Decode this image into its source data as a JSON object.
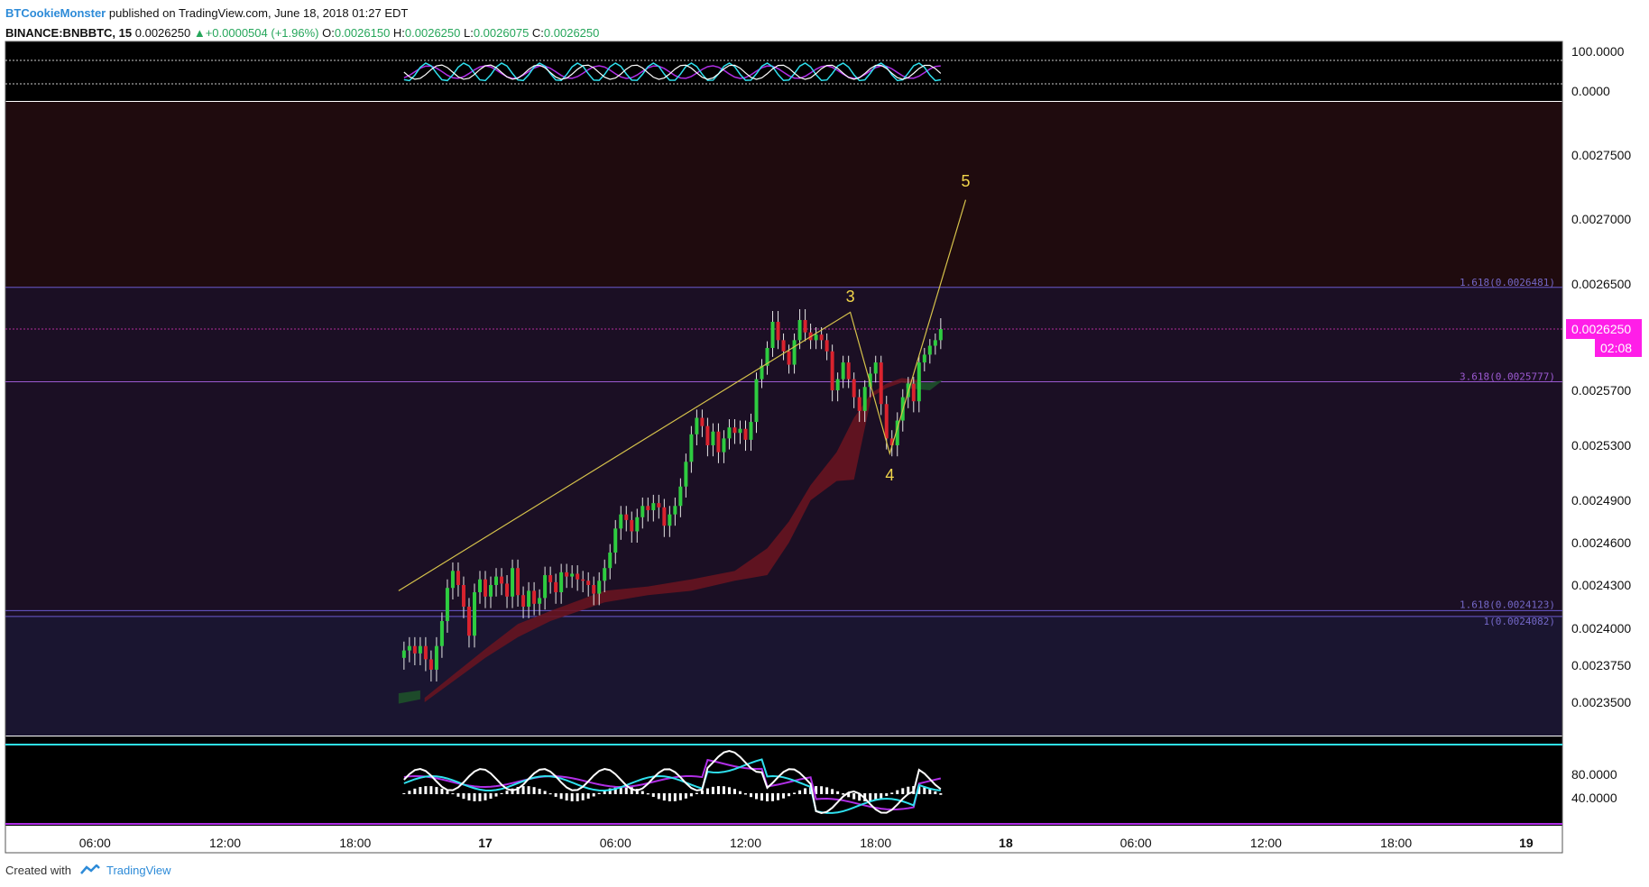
{
  "header": {
    "author": "BTCookieMonster",
    "published": "published on TradingView.com, June 18, 2018 01:27 EDT",
    "symbol": "BINANCE:BNBBTC, 15",
    "last": "0.0026250",
    "change": "+0.0000504 (+1.96%)",
    "ohlc_o_label": "O:",
    "ohlc_o": "0.0026150",
    "ohlc_h_label": "H:",
    "ohlc_h": "0.0026250",
    "ohlc_l_label": "L:",
    "ohlc_l": "0.0026075",
    "ohlc_c_label": "C:",
    "ohlc_c": "0.0026250"
  },
  "footer": {
    "created_with": "Created with",
    "brand": "TradingView"
  },
  "colors": {
    "background": "#000000",
    "panel_bg": "#1b0f24",
    "upper_zone": "#1f0b0e",
    "lower_zone": "#1a1530",
    "up_candle": "#2ecc40",
    "down_candle": "#d9232e",
    "wave_line": "#d6c24b",
    "cloud": "#6b1420",
    "cloud_green": "#1d4a2a",
    "fib_line": "#6a5acd",
    "price_tag": "#ff1ee8",
    "cyan": "#2fe0ee",
    "purple": "#b02ee6"
  },
  "chart_data": [
    {
      "type": "candlestick",
      "title": "",
      "y_axis_ticks": [
        "0.0027500",
        "0.0027000",
        "0.0026500",
        "0.0026250",
        "0.0025700",
        "0.0025300",
        "0.0024900",
        "0.0024600",
        "0.0024300",
        "0.0024000",
        "0.0023750",
        "0.0023500"
      ],
      "ylim": [
        0.00232,
        0.00279
      ],
      "x_axis_ticks": [
        "06:00",
        "12:00",
        "18:00",
        "17",
        "06:00",
        "12:00",
        "18:00",
        "18",
        "06:00",
        "12:00",
        "18:00",
        "19"
      ],
      "x_axis_bold": [
        "17",
        "18",
        "19"
      ],
      "current_price_label": "0.0026250",
      "countdown_label": "02:08",
      "fib_labels": [
        {
          "text": "1.618(0.0026481)",
          "price": 0.0026481
        },
        {
          "text": "3.618(0.0025777)",
          "price": 0.0025777
        },
        {
          "text": "1.618(0.0024123)",
          "price": 0.0024123
        },
        {
          "text": "1(0.0024082)",
          "price": 0.0024082
        }
      ],
      "wave_labels": [
        {
          "text": "3",
          "time": 16.83,
          "price": 0.00264
        },
        {
          "text": "4",
          "time": 18.65,
          "price": 0.0025045
        },
        {
          "text": "5",
          "time": 22.15,
          "price": 0.0027255
        }
      ],
      "wave_path": [
        {
          "time": -4.0,
          "price": 0.002426
        },
        {
          "time": 16.83,
          "price": 0.0026343
        },
        {
          "time": 18.65,
          "price": 0.002524
        },
        {
          "time": 22.15,
          "price": 0.002715
        }
      ],
      "candles": [
        [
          0.00238,
          0.002385
        ],
        [
          0.002385,
          0.002388
        ],
        [
          0.002388,
          0.002383
        ],
        [
          0.002383,
          0.002388
        ],
        [
          0.002388,
          0.002379
        ],
        [
          0.002379,
          0.002372
        ],
        [
          0.002372,
          0.002388
        ],
        [
          0.002388,
          0.002405
        ],
        [
          0.002405,
          0.002428
        ],
        [
          0.002428,
          0.00244
        ],
        [
          0.00244,
          0.00243
        ],
        [
          0.00243,
          0.002415
        ],
        [
          0.002415,
          0.002395
        ],
        [
          0.002395,
          0.002425
        ],
        [
          0.002425,
          0.002434
        ],
        [
          0.002434,
          0.002422
        ],
        [
          0.002422,
          0.00243
        ],
        [
          0.00243,
          0.002436
        ],
        [
          0.002436,
          0.002431
        ],
        [
          0.002431,
          0.002422
        ],
        [
          0.002422,
          0.002442
        ],
        [
          0.002442,
          0.002423
        ],
        [
          0.002423,
          0.002415
        ],
        [
          0.002415,
          0.002426
        ],
        [
          0.002426,
          0.002417
        ],
        [
          0.002417,
          0.002421
        ],
        [
          0.002421,
          0.002437
        ],
        [
          0.002437,
          0.002432
        ],
        [
          0.002432,
          0.002425
        ],
        [
          0.002425,
          0.002439
        ],
        [
          0.002439,
          0.002436
        ],
        [
          0.002436,
          0.002438
        ],
        [
          0.002438,
          0.002434
        ],
        [
          0.002434,
          0.002433
        ],
        [
          0.002433,
          0.00243
        ],
        [
          0.00243,
          0.002424
        ],
        [
          0.002424,
          0.002433
        ],
        [
          0.002433,
          0.002442
        ],
        [
          0.002442,
          0.002453
        ],
        [
          0.002453,
          0.00247
        ],
        [
          0.00247,
          0.00248
        ],
        [
          0.00248,
          0.002476
        ],
        [
          0.002476,
          0.002468
        ],
        [
          0.002468,
          0.002478
        ],
        [
          0.002478,
          0.002486
        ],
        [
          0.002486,
          0.002483
        ],
        [
          0.002483,
          0.002488
        ],
        [
          0.002488,
          0.002485
        ],
        [
          0.002485,
          0.002472
        ],
        [
          0.002472,
          0.00248
        ],
        [
          0.00248,
          0.002486
        ],
        [
          0.002486,
          0.0025
        ],
        [
          0.0025,
          0.002518
        ],
        [
          0.002518,
          0.002538
        ],
        [
          0.002538,
          0.00255
        ],
        [
          0.00255,
          0.002544
        ],
        [
          0.002544,
          0.00253
        ],
        [
          0.00253,
          0.00254
        ],
        [
          0.00254,
          0.002525
        ],
        [
          0.002525,
          0.002535
        ],
        [
          0.002535,
          0.002543
        ],
        [
          0.002543,
          0.002539
        ],
        [
          0.002539,
          0.002542
        ],
        [
          0.002542,
          0.002534
        ],
        [
          0.002534,
          0.002547
        ],
        [
          0.002547,
          0.00258
        ],
        [
          0.00258,
          0.002592
        ],
        [
          0.002592,
          0.002608
        ],
        [
          0.002608,
          0.002629
        ],
        [
          0.002629,
          0.002615
        ],
        [
          0.002615,
          0.002605
        ],
        [
          0.002605,
          0.002593
        ],
        [
          0.002593,
          0.002615
        ],
        [
          0.002615,
          0.00263
        ],
        [
          0.00263,
          0.002622
        ],
        [
          0.002622,
          0.002615
        ],
        [
          0.002615,
          0.00262
        ],
        [
          0.00262,
          0.002615
        ],
        [
          0.002615,
          0.002605
        ],
        [
          0.002605,
          0.00257
        ],
        [
          0.00257,
          0.00258
        ],
        [
          0.00258,
          0.002595
        ],
        [
          0.002595,
          0.00258
        ],
        [
          0.00258,
          0.002565
        ],
        [
          0.002565,
          0.002555
        ],
        [
          0.002555,
          0.002573
        ],
        [
          0.002573,
          0.002585
        ],
        [
          0.002585,
          0.002595
        ],
        [
          0.002595,
          0.00256
        ],
        [
          0.00256,
          0.002535
        ],
        [
          0.002535,
          0.00253
        ],
        [
          0.00253,
          0.002548
        ],
        [
          0.002548,
          0.002565
        ],
        [
          0.002565,
          0.002576
        ],
        [
          0.002576,
          0.002562
        ],
        [
          0.002562,
          0.002595
        ],
        [
          0.002595,
          0.002602
        ],
        [
          0.002602,
          0.00261
        ],
        [
          0.00261,
          0.002615
        ],
        [
          0.002615,
          0.002625
        ]
      ],
      "time_start": -3.75,
      "time_step": 0.25
    }
  ]
}
